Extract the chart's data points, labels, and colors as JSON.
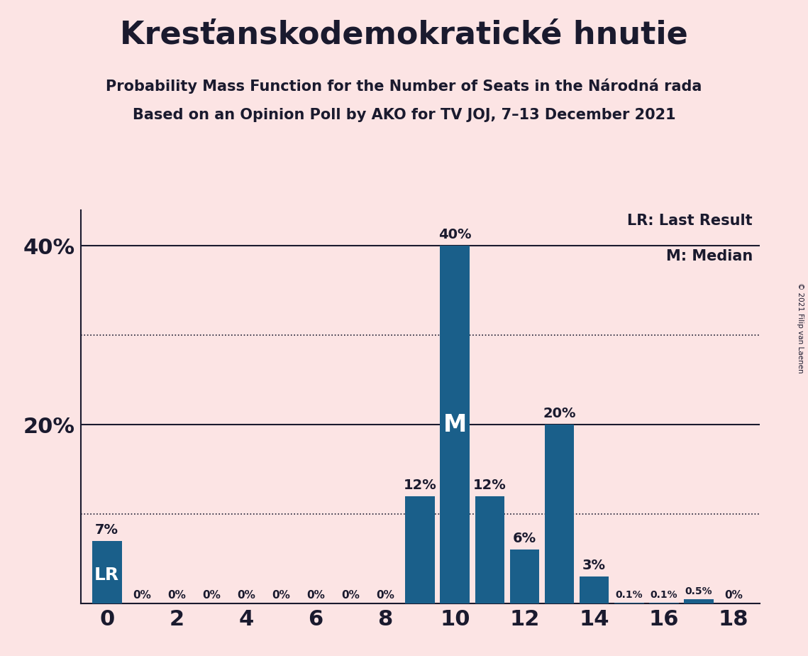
{
  "title": "Kresťanskodemokratické hnutie",
  "subtitle1": "Probability Mass Function for the Number of Seats in the Národná rada",
  "subtitle2": "Based on an Opinion Poll by AKO for TV JOJ, 7–13 December 2021",
  "copyright": "© 2021 Filip van Laenen",
  "seats": [
    0,
    1,
    2,
    3,
    4,
    5,
    6,
    7,
    8,
    9,
    10,
    11,
    12,
    13,
    14,
    15,
    16,
    17,
    18
  ],
  "probabilities": [
    7,
    0,
    0,
    0,
    0,
    0,
    0,
    0,
    0,
    12,
    40,
    12,
    6,
    20,
    3,
    0.1,
    0.1,
    0.5,
    0
  ],
  "bar_color": "#1a5f8a",
  "background_color": "#fce4e4",
  "text_color": "#1a1a2e",
  "lr_seat": 0,
  "median_seat": 10,
  "lr_label": "LR",
  "median_label": "M",
  "legend_lr": "LR: Last Result",
  "legend_m": "M: Median",
  "ytick_labels": [
    "20%",
    "40%"
  ],
  "ytick_values": [
    20,
    40
  ],
  "ylim": [
    0,
    44
  ],
  "solid_lines": [
    20,
    40
  ],
  "dotted_lines": [
    10,
    30
  ],
  "xlim_min": -0.75,
  "xlim_max": 18.75
}
